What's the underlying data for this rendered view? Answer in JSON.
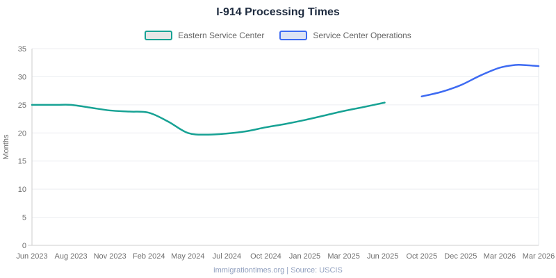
{
  "chart_data": {
    "type": "line",
    "title": "I-914 Processing Times",
    "ylabel": "Months",
    "ylim": [
      0,
      35
    ],
    "yticks": [
      0,
      5,
      10,
      15,
      20,
      25,
      30,
      35
    ],
    "grid": true,
    "legend_position": "top",
    "categories": [
      "Jun 2023",
      "Aug 2023",
      "Nov 2023",
      "Feb 2024",
      "May 2024",
      "Jul 2024",
      "Oct 2024",
      "Jan 2025",
      "Mar 2025",
      "Jun 2025",
      "Oct 2025",
      "Dec 2025",
      "Mar 2026",
      "Mar 2026"
    ],
    "series": [
      {
        "name": "Eastern Service Center",
        "color": "#17a294",
        "swatch_fill": "#e6e6e6",
        "values_at_ticks": [
          25.0,
          25.0,
          24.0,
          23.6,
          20.0,
          19.9,
          21.0,
          22.3,
          23.9,
          25.4,
          null,
          null,
          null,
          null
        ],
        "curve_points": [
          [
            0,
            25.0
          ],
          [
            0.6,
            25.0
          ],
          [
            1,
            25.0
          ],
          [
            1.5,
            24.5
          ],
          [
            2,
            24.0
          ],
          [
            2.5,
            23.8
          ],
          [
            3,
            23.6
          ],
          [
            3.5,
            22.0
          ],
          [
            4,
            20.0
          ],
          [
            4.5,
            19.7
          ],
          [
            5,
            19.9
          ],
          [
            5.5,
            20.3
          ],
          [
            6,
            21.0
          ],
          [
            6.5,
            21.6
          ],
          [
            7,
            22.3
          ],
          [
            7.5,
            23.1
          ],
          [
            8,
            23.9
          ],
          [
            8.5,
            24.6
          ],
          [
            9.05,
            25.4
          ]
        ]
      },
      {
        "name": "Service Center Operations",
        "color": "#3e6bf2",
        "swatch_fill": "#dde3f4",
        "values_at_ticks": [
          null,
          null,
          null,
          null,
          null,
          null,
          null,
          null,
          null,
          null,
          26.5,
          28.5,
          31.6,
          31.9
        ],
        "curve_points": [
          [
            10,
            26.5
          ],
          [
            10.5,
            27.3
          ],
          [
            11,
            28.5
          ],
          [
            11.5,
            30.2
          ],
          [
            12,
            31.6
          ],
          [
            12.4,
            32.1
          ],
          [
            12.7,
            32.05
          ],
          [
            13,
            31.9
          ]
        ]
      }
    ],
    "source_note": "immigrationtimes.org | Source: USCIS"
  },
  "style_colors": {
    "title_text": "#1e2b3f",
    "axis_label_text": "#6f6f6f",
    "legend_text": "#666666",
    "footer_text": "#91a0bf",
    "gridline": "#ecedf1",
    "axis_line": "#cccccc",
    "plot_right_border": "#e6e8ed"
  }
}
